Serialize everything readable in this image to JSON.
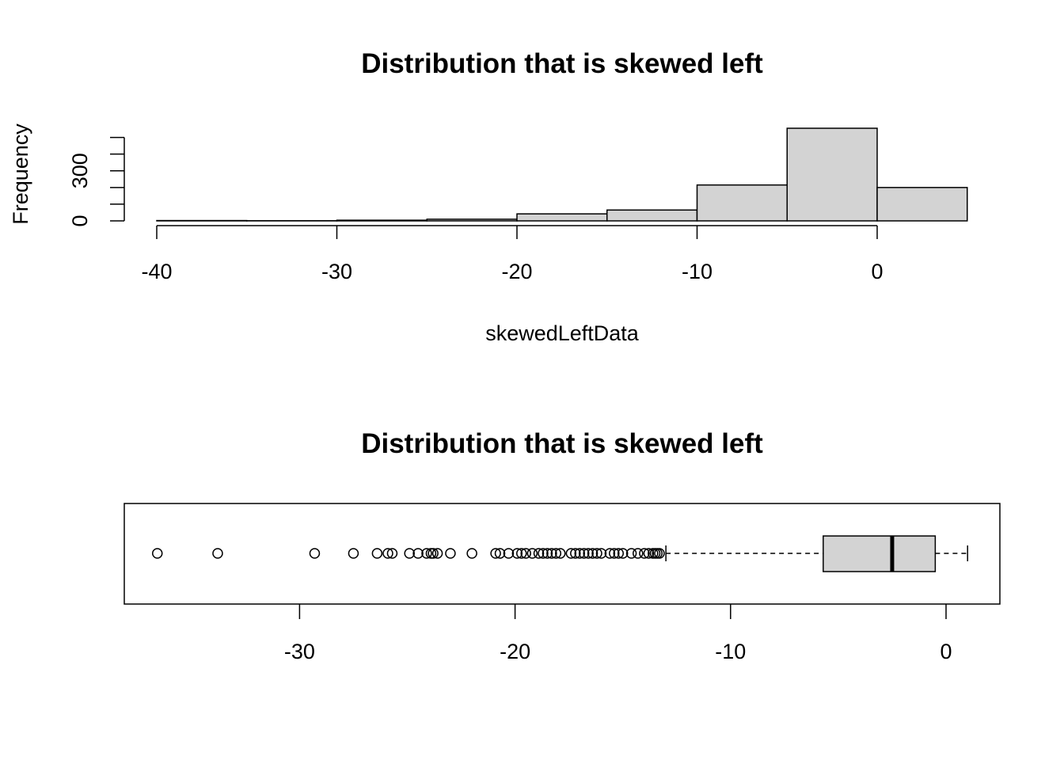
{
  "chart_data": [
    {
      "type": "bar",
      "subtype": "histogram",
      "title": "Distribution that is skewed left",
      "xlabel": "skewedLeftData",
      "ylabel": "Frequency",
      "x_ticks": [
        "-40",
        "-30",
        "-20",
        "-10",
        "0"
      ],
      "y_ticks": [
        "0",
        "300"
      ],
      "bins": [
        {
          "from": -40,
          "to": -35,
          "count": 2
        },
        {
          "from": -35,
          "to": -30,
          "count": 1
        },
        {
          "from": -30,
          "to": -25,
          "count": 4
        },
        {
          "from": -25,
          "to": -20,
          "count": 10
        },
        {
          "from": -20,
          "to": -15,
          "count": 42
        },
        {
          "from": -15,
          "to": -10,
          "count": 65
        },
        {
          "from": -10,
          "to": -5,
          "count": 215
        },
        {
          "from": -5,
          "to": 0,
          "count": 555
        },
        {
          "from": 0,
          "to": 5,
          "count": 200
        }
      ],
      "xlim": [
        -40,
        5
      ],
      "ylim": [
        0,
        555
      ],
      "grid": false,
      "bar_color": "#d3d3d3"
    },
    {
      "type": "box",
      "orientation": "horizontal",
      "title": "Distribution that is skewed left",
      "x_ticks": [
        "-30",
        "-20",
        "-10",
        "0"
      ],
      "xlim": [
        -38.1,
        2.5
      ],
      "whisker_low": -13.0,
      "q1": -5.7,
      "median": -2.5,
      "q3": -0.5,
      "whisker_high": 1.0,
      "outliers": [
        -36.6,
        -33.8,
        -29.3,
        -27.5,
        -26.4,
        -25.9,
        -25.7,
        -24.9,
        -24.5,
        -24.1,
        -23.9,
        -23.8,
        -23.6,
        -23.0,
        -22.0,
        -20.9,
        -20.7,
        -20.3,
        -19.9,
        -19.7,
        -19.5,
        -19.2,
        -18.9,
        -18.7,
        -18.5,
        -18.3,
        -18.1,
        -17.9,
        -17.4,
        -17.2,
        -17.0,
        -16.8,
        -16.6,
        -16.4,
        -16.2,
        -16.0,
        -15.6,
        -15.4,
        -15.2,
        -15.0,
        -14.6,
        -14.3,
        -14.0,
        -13.8,
        -13.6,
        -13.5,
        -13.4,
        -13.3
      ],
      "box_color": "#d3d3d3",
      "grid": false
    }
  ]
}
